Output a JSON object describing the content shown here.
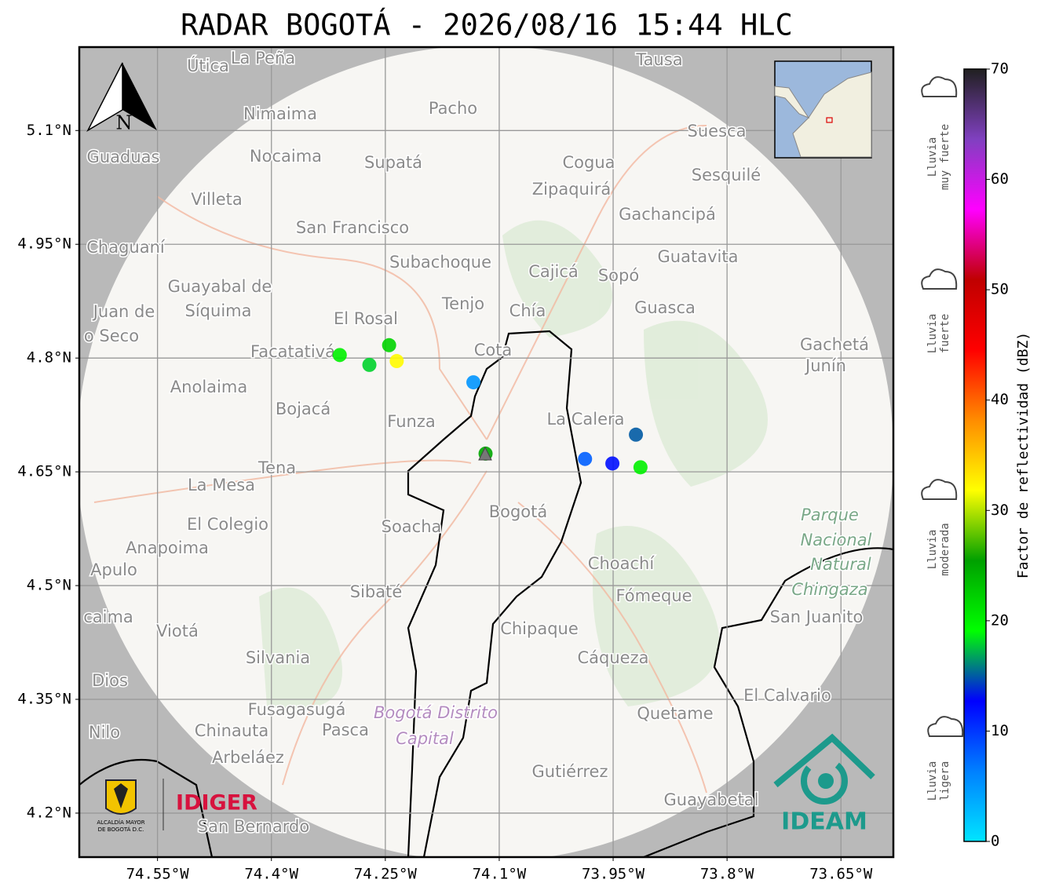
{
  "title": "RADAR BOGOTÁ - 2026/08/16 15:44 HLC",
  "map": {
    "xlim": [
      -74.653,
      -73.581
    ],
    "ylim": [
      4.142,
      5.21
    ],
    "grid": true,
    "xticks": [
      {
        "value": -74.55,
        "label": "74.55°W"
      },
      {
        "value": -74.4,
        "label": "74.4°W"
      },
      {
        "value": -74.25,
        "label": "74.25°W"
      },
      {
        "value": -74.1,
        "label": "74.1°W"
      },
      {
        "value": -73.95,
        "label": "73.95°W"
      },
      {
        "value": -73.8,
        "label": "73.8°W"
      },
      {
        "value": -73.65,
        "label": "73.65°W"
      }
    ],
    "yticks": [
      {
        "value": 5.1,
        "label": "5.1°N"
      },
      {
        "value": 4.95,
        "label": "4.95°N"
      },
      {
        "value": 4.8,
        "label": "4.8°N"
      },
      {
        "value": 4.65,
        "label": "4.65°N"
      },
      {
        "value": 4.5,
        "label": "4.5°N"
      },
      {
        "value": 4.35,
        "label": "4.35°N"
      },
      {
        "value": 4.2,
        "label": "4.2°N"
      }
    ],
    "north": "N",
    "places": [
      "Útica",
      "La Peña",
      "Tausa",
      "Pacho",
      "Nimaima",
      "Guaduas",
      "Nocaima",
      "Supatá",
      "Cogua",
      "Suesca",
      "Sesquilé",
      "Zipaquirá",
      "Villeta",
      "Gachancipá",
      "San Francisco",
      "Chaguaní",
      "Subachoque",
      "Guatavita",
      "Cajicá",
      "Sopó",
      "Guayabal de",
      "Síquima",
      "Juan de",
      "o Seco",
      "Tenjo",
      "Chía",
      "Guasca",
      "El Rosal",
      "Facatativá",
      "Cota",
      "Gachetá",
      "Junín",
      "Anolaima",
      "Bojacá",
      "Funza",
      "La Calera",
      "Tena",
      "La Mesa",
      "El Colegio",
      "Soacha",
      "Bogotá",
      "Anapoima",
      "Apulo",
      "Choachí",
      "Sibaté",
      "Fómeque",
      "caima",
      "San Juanito",
      "Viotá",
      "Chipaque",
      "Silvania",
      "Cáqueza",
      "Dios",
      "El Calvario",
      "Fusagasugá",
      "Quetame",
      "Nilo",
      "Chinauta",
      "Pasca",
      "Arbeláez",
      "Gutiérrez",
      "Guayabetal",
      "San Bernardo",
      "Parque",
      "Nacional",
      "Natural",
      "Chingaza",
      "Bogotá Distrito",
      "Capital"
    ],
    "echoes": [
      {
        "lon": -74.245,
        "lat": 4.817,
        "dbz": 22
      },
      {
        "lon": -74.235,
        "lat": 4.796,
        "dbz": 32
      },
      {
        "lon": -74.271,
        "lat": 4.791,
        "dbz": 18
      },
      {
        "lon": -74.31,
        "lat": 4.804,
        "dbz": 20
      },
      {
        "lon": -74.134,
        "lat": 4.768,
        "dbz": 5
      },
      {
        "lon": -74.118,
        "lat": 4.674,
        "dbz": 25
      },
      {
        "lon": -73.914,
        "lat": 4.656,
        "dbz": 20
      },
      {
        "lon": -73.951,
        "lat": 4.661,
        "dbz": 12
      },
      {
        "lon": -73.987,
        "lat": 4.667,
        "dbz": 8
      },
      {
        "lon": -73.92,
        "lat": 4.699,
        "dbz": 15
      }
    ],
    "logos": {
      "alcaldia": [
        "ALCALDÍA MAYOR",
        "DE BOGOTÁ D.C."
      ],
      "idiger": "IDIGER",
      "ideam": "IDEAM"
    }
  },
  "colorbar": {
    "label": "Factor de reflectividad (dBZ)",
    "lim": [
      0,
      70
    ],
    "ticks": [
      0,
      10,
      20,
      30,
      40,
      50,
      60,
      70
    ],
    "colormap": [
      "#00e5ff",
      "#0080ff",
      "#0000ff",
      "#00ff00",
      "#00a000",
      "#ffff00",
      "#ff8c00",
      "#ff0000",
      "#c00000",
      "#ff00ff",
      "#8040c0",
      "#202020"
    ]
  },
  "rain_legend": [
    {
      "lines": [
        "Lluvia",
        "muy fuerte"
      ]
    },
    {
      "lines": [
        "Lluvia",
        "fuerte"
      ]
    },
    {
      "lines": [
        "Lluvia",
        "moderada"
      ]
    },
    {
      "lines": [
        "Lluvia",
        "ligera"
      ]
    }
  ]
}
